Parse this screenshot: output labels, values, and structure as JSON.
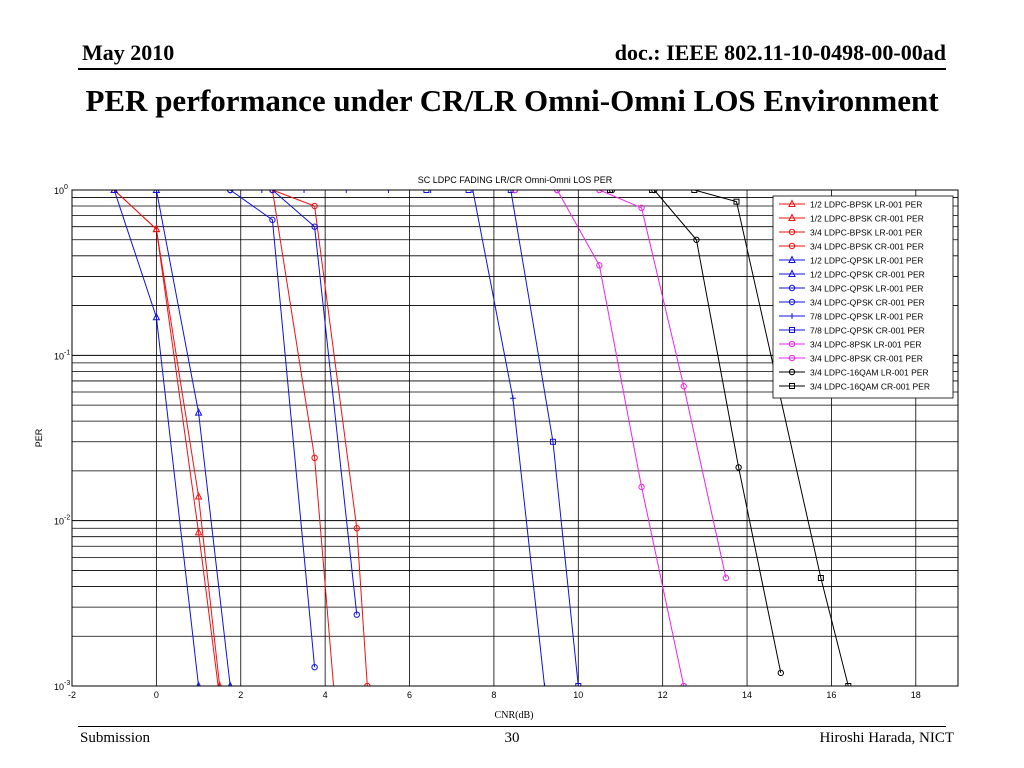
{
  "header": {
    "left": "May 2010",
    "right": "doc.: IEEE 802.11-10-0498-00-00ad"
  },
  "slide_title": "PER performance under CR/LR Omni-Omni LOS Environment",
  "footer": {
    "left": "Submission",
    "center": "30",
    "right": "Hiroshi Harada, NICT"
  },
  "colors": {
    "red": "#ee1111",
    "blue": "#1111dd",
    "magenta": "#ee22ee",
    "black": "#000000"
  },
  "chart_data": {
    "type": "line",
    "title": "SC LDPC FADING LR/CR Omni-Omni LOS PER",
    "xlabel": "CNR(dB)",
    "ylabel": "PER",
    "xlim": [
      -2,
      19
    ],
    "ylim": [
      0.001,
      1
    ],
    "yscale": "log",
    "grid": true,
    "legend_position": "top-right",
    "x_ticks": [
      "-2",
      "0",
      "2",
      "4",
      "6",
      "8",
      "10",
      "12",
      "14",
      "16",
      "18"
    ],
    "y_ticks": [
      {
        "value": 1,
        "base": "10",
        "exp": "0"
      },
      {
        "value": 0.1,
        "base": "10",
        "exp": "-1"
      },
      {
        "value": 0.01,
        "base": "10",
        "exp": "-2"
      },
      {
        "value": 0.001,
        "base": "10",
        "exp": "-3"
      }
    ],
    "series": [
      {
        "name": "1/2 LDPC-BPSK LR-001 PER",
        "color": "#ee1111",
        "marker": "triangle",
        "x": [
          -1,
          0,
          1,
          1.5
        ],
        "y": [
          1,
          0.58,
          0.0085,
          0.00085
        ]
      },
      {
        "name": "1/2 LDPC-BPSK CR-001 PER",
        "color": "#ee1111",
        "marker": "triangle",
        "x": [
          -1,
          0,
          1,
          1.5
        ],
        "y": [
          1,
          0.58,
          0.014,
          0.001
        ]
      },
      {
        "name": "3/4 LDPC-BPSK LR-001 PER",
        "color": "#ee1111",
        "marker": "circle",
        "x": [
          2.75,
          3.75,
          4.25
        ],
        "y": [
          1,
          0.024,
          0.0007
        ]
      },
      {
        "name": "3/4 LDPC-BPSK CR-001 PER",
        "color": "#ee1111",
        "marker": "circle",
        "x": [
          2.75,
          3.75,
          4.75,
          5.0
        ],
        "y": [
          1,
          0.8,
          0.009,
          0.001
        ]
      },
      {
        "name": "1/2 LDPC-QPSK LR-001 PER",
        "color": "#1111dd",
        "marker": "triangle",
        "x": [
          -1,
          0,
          1,
          1.3
        ],
        "y": [
          1,
          0.17,
          0.001,
          0.0007
        ]
      },
      {
        "name": "1/2 LDPC-QPSK CR-001 PER",
        "color": "#1111dd",
        "marker": "triangle",
        "x": [
          -1,
          0,
          1,
          1.75
        ],
        "y": [
          1,
          1,
          0.045,
          0.001
        ]
      },
      {
        "name": "3/4 LDPC-QPSK LR-001 PER",
        "color": "#1111dd",
        "marker": "circle",
        "x": [
          1.75,
          2.75,
          3.75
        ],
        "y": [
          1,
          0.66,
          0.0013
        ]
      },
      {
        "name": "3/4 LDPC-QPSK CR-001 PER",
        "color": "#1111dd",
        "marker": "circle",
        "x": [
          1.75,
          2.75,
          3.75,
          4.75
        ],
        "y": [
          1,
          1,
          0.6,
          0.0027
        ]
      },
      {
        "name": "7/8 LDPC-QPSK LR-001 PER",
        "color": "#1111dd",
        "marker": "plus",
        "x": [
          2.5,
          3.5,
          4.5,
          5.5,
          6.5,
          7.5,
          8.45,
          9.2
        ],
        "y": [
          1,
          1,
          1,
          1,
          1,
          1,
          0.055,
          0.001
        ]
      },
      {
        "name": "7/8 LDPC-QPSK CR-001 PER",
        "color": "#1111dd",
        "marker": "square",
        "x": [
          6.4,
          7.4,
          8.4,
          9.4,
          10.0
        ],
        "y": [
          1,
          1,
          1,
          0.03,
          0.001
        ]
      },
      {
        "name": "3/4 LDPC-8PSK LR-001 PER",
        "color": "#ee22ee",
        "marker": "circle",
        "x": [
          8.5,
          9.5,
          10.5,
          11.5,
          12.5
        ],
        "y": [
          1,
          1,
          0.35,
          0.016,
          0.001
        ]
      },
      {
        "name": "3/4 LDPC-8PSK CR-001 PER",
        "color": "#ee22ee",
        "marker": "circle",
        "x": [
          8.5,
          9.5,
          10.5,
          11.5,
          12.5,
          13.5
        ],
        "y": [
          1,
          1,
          1,
          0.78,
          0.065,
          0.0045
        ]
      },
      {
        "name": "3/4 LDPC-16QAM LR-001 PER",
        "color": "#000000",
        "marker": "circle",
        "x": [
          10.8,
          11.8,
          12.8,
          13.8,
          14.8
        ],
        "y": [
          1,
          1,
          0.5,
          0.021,
          0.0012
        ]
      },
      {
        "name": "3/4 LDPC-16QAM CR-001 PER",
        "color": "#000000",
        "marker": "square",
        "x": [
          10.75,
          11.75,
          12.75,
          13.75,
          15.75,
          16.4
        ],
        "y": [
          1,
          1,
          1,
          0.85,
          0.0045,
          0.001
        ]
      }
    ]
  }
}
